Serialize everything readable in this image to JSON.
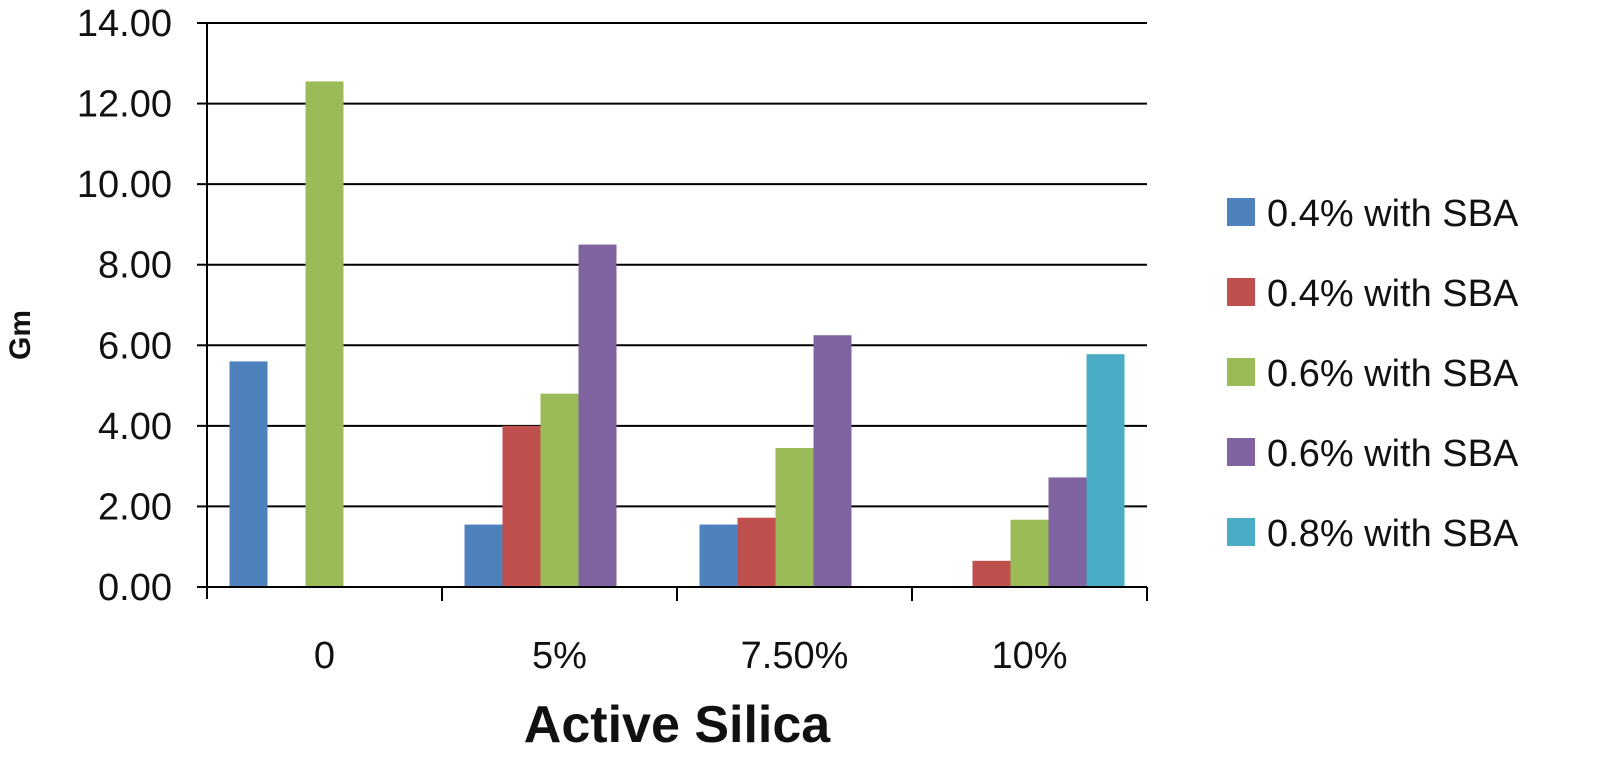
{
  "chart_data": {
    "type": "bar",
    "categories": [
      "0",
      "5%",
      "7.50%",
      "10%"
    ],
    "series": [
      {
        "name": "0.4% with SBA",
        "color": "#4F81BD",
        "values": [
          5.6,
          1.55,
          1.55,
          null
        ]
      },
      {
        "name": "0.4% with SBA",
        "color": "#C0504D",
        "values": [
          null,
          4.0,
          1.72,
          0.65
        ]
      },
      {
        "name": "0.6% with SBA",
        "color": "#9BBB59",
        "values": [
          12.55,
          4.8,
          3.45,
          1.67
        ]
      },
      {
        "name": "0.6% with SBA",
        "color": "#8064A2",
        "values": [
          null,
          8.5,
          6.25,
          2.72
        ]
      },
      {
        "name": "0.8% with SBA",
        "color": "#4BACC6",
        "values": [
          null,
          null,
          null,
          5.78
        ]
      }
    ],
    "xlabel": "Active Silica",
    "ylabel": "Gm",
    "ylim": [
      0,
      14
    ],
    "yticks": [
      "0.00",
      "2.00",
      "4.00",
      "6.00",
      "8.00",
      "10.00",
      "12.00",
      "14.00"
    ],
    "grid": true,
    "legend": "right"
  }
}
